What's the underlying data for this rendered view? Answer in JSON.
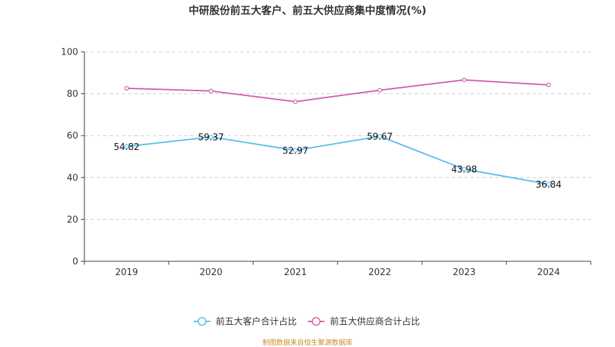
{
  "chart_data": {
    "type": "line",
    "title": "中研股份前五大客户、前五大供应商集中度情况(%)",
    "categories": [
      "2019",
      "2020",
      "2021",
      "2022",
      "2023",
      "2024"
    ],
    "ylim": [
      0,
      100
    ],
    "yticks": [
      0,
      20,
      40,
      60,
      80,
      100
    ],
    "grid": true,
    "legend_position": "bottom-center",
    "series": [
      {
        "name": "前五大客户合计占比",
        "color": "#5bc0eb",
        "values": [
          54.82,
          59.37,
          52.97,
          59.67,
          43.98,
          36.84
        ],
        "labels": [
          "54.82",
          "59.37",
          "52.97",
          "59.67",
          "43.98",
          "36.84"
        ],
        "show_labels": true
      },
      {
        "name": "前五大供应商合计占比",
        "color": "#d062b0",
        "values": [
          82.6,
          81.3,
          76.2,
          81.7,
          86.6,
          84.2
        ],
        "show_labels": false
      }
    ]
  },
  "source": "制图数据来自恒生聚源数据库"
}
